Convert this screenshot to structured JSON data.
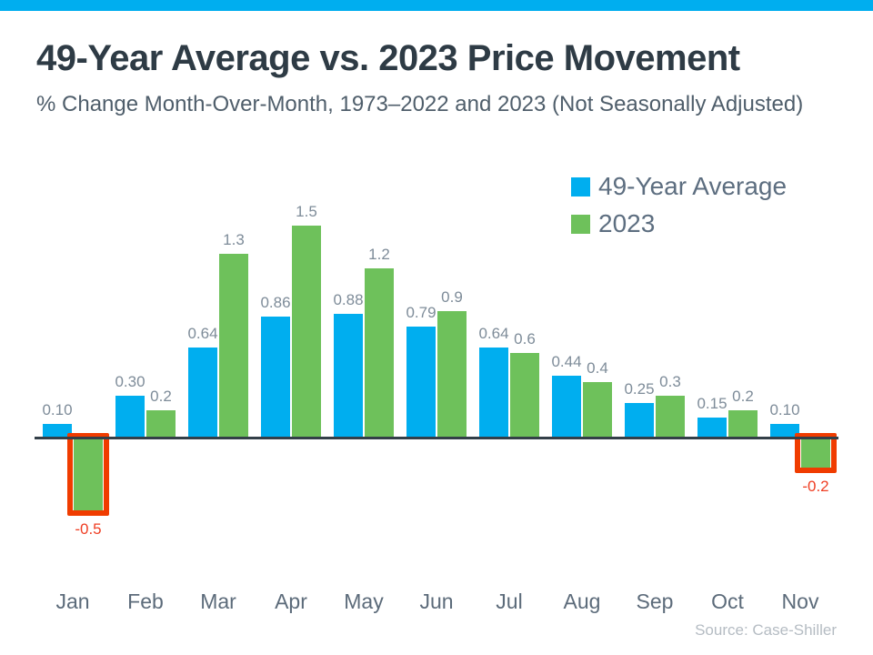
{
  "page": {
    "top_bar_color": "#00aeef",
    "background_color": "#ffffff"
  },
  "header": {
    "title": "49-Year Average vs. 2023 Price Movement",
    "subtitle": "% Change Month-Over-Month, 1973–2022 and 2023 (Not Seasonally Adjusted)"
  },
  "legend": {
    "position": "top-right",
    "items": [
      {
        "label": "49-Year Average",
        "color": "#00aeef"
      },
      {
        "label": "2023",
        "color": "#6ec15b"
      }
    ]
  },
  "chart_data": {
    "type": "bar",
    "title": "49-Year Average vs. 2023 Price Movement",
    "subtitle": "% Change Month-Over-Month, 1973–2022 and 2023 (Not Seasonally Adjusted)",
    "categories": [
      "Jan",
      "Feb",
      "Mar",
      "Apr",
      "May",
      "Jun",
      "Jul",
      "Aug",
      "Sep",
      "Oct",
      "Nov"
    ],
    "series": [
      {
        "name": "49-Year Average",
        "color": "#00aeef",
        "values": [
          0.1,
          0.3,
          0.64,
          0.86,
          0.88,
          0.79,
          0.64,
          0.44,
          0.25,
          0.15,
          0.1
        ],
        "labels": [
          "0.10",
          "0.30",
          "0.64",
          "0.86",
          "0.88",
          "0.79",
          "0.64",
          "0.44",
          "0.25",
          "0.15",
          "0.10"
        ]
      },
      {
        "name": "2023",
        "color": "#6ec15b",
        "values": [
          -0.5,
          0.2,
          1.3,
          1.5,
          1.2,
          0.9,
          0.6,
          0.4,
          0.3,
          0.2,
          -0.2
        ],
        "labels": [
          "-0.5",
          "0.2",
          "1.3",
          "1.5",
          "1.2",
          "0.9",
          "0.6",
          "0.4",
          "0.3",
          "0.2",
          "-0.2"
        ]
      }
    ],
    "highlighted_bars": [
      {
        "series": "2023",
        "category": "Jan"
      },
      {
        "series": "2023",
        "category": "Nov"
      }
    ],
    "highlight_color": "#f03c00",
    "label_color": "#7e8c99",
    "negative_label_color": "#ef3e23",
    "axis_color": "#333f48",
    "xlabel": "",
    "ylabel": "% Change Month-Over-Month",
    "ylim": [
      -0.6,
      1.6
    ],
    "grid": false,
    "legend_position": "top-right"
  },
  "footer": {
    "source": "Source: Case-Shiller"
  }
}
